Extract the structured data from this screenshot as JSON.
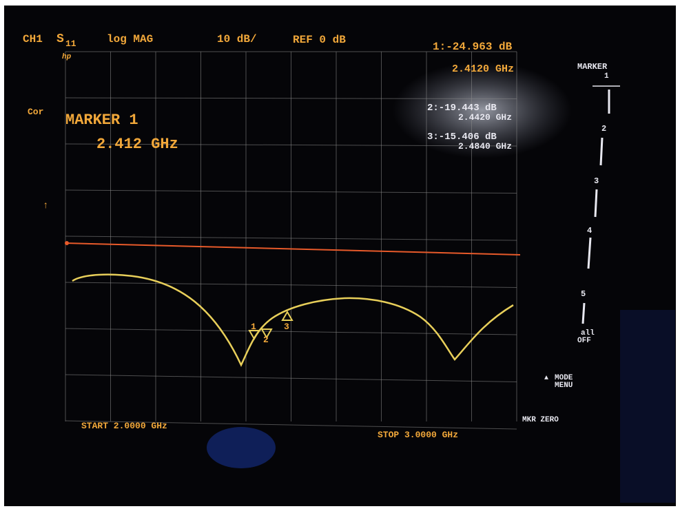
{
  "header": {
    "channel": "CH1",
    "parameter": "S",
    "parameter_sub": "11",
    "format": "log MAG",
    "scale": "10 dB/",
    "reference": "REF 0 dB",
    "marker_value": "1:-24.963 dB",
    "marker_freq": "2.4120 GHz",
    "logo": "hp"
  },
  "status": "Cor",
  "active_marker": {
    "label": "MARKER 1",
    "freq": "2.412 GHz"
  },
  "markers": [
    {
      "value": "2:-19.443 dB",
      "freq": "2.4420 GHz"
    },
    {
      "value": "3:-15.406 dB",
      "freq": "2.4840 GHz"
    }
  ],
  "trace_markers": [
    "1",
    "2",
    "3"
  ],
  "softkeys": {
    "title": "MARKER",
    "title_sub": "1",
    "keys": [
      "2",
      "3",
      "4",
      "5"
    ],
    "all_off": [
      "all",
      "OFF"
    ],
    "mode_menu": [
      "MODE",
      "MENU"
    ],
    "mkr_zero": "MKR ZERO"
  },
  "footer": {
    "start": "START 2.0000 GHz",
    "stop": "STOP 3.0000 GHz"
  }
}
